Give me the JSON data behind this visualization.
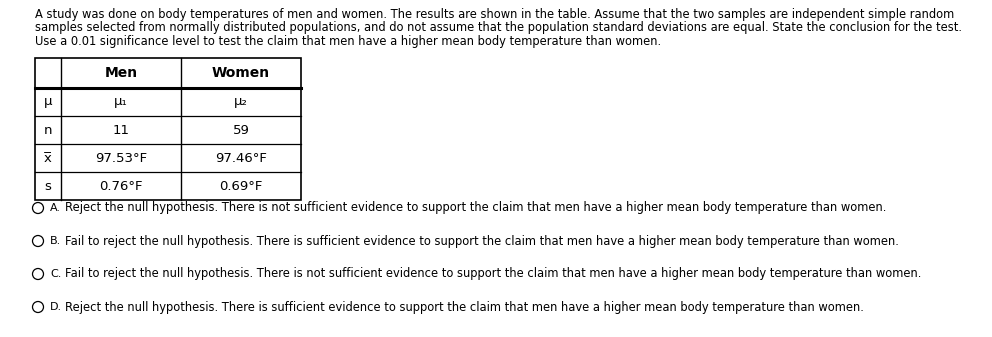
{
  "title_lines": [
    "A study was done on body temperatures of men and women. The results are shown in the table. Assume that the two samples are independent simple random",
    "samples selected from normally distributed populations, and do not assume that the population standard deviations are equal. State the conclusion for the test.",
    "Use a 0.01 significance level to test the claim that men have a higher mean body temperature than women."
  ],
  "table_rows": [
    [
      "μ",
      "μ₁",
      "μ₂"
    ],
    [
      "n",
      "11",
      "59"
    ],
    [
      "x̅",
      "97.53°F",
      "97.46°F"
    ],
    [
      "s",
      "0.76°F",
      "0.69°F"
    ]
  ],
  "options": [
    {
      "label": "A.",
      "text": "Reject the null hypothesis. There is not sufficient evidence to support the claim that men have a higher mean body temperature than women."
    },
    {
      "label": "B.",
      "text": "Fail to reject the null hypothesis. There is sufficient evidence to support the claim that men have a higher mean body temperature than women."
    },
    {
      "label": "C.",
      "text": "Fail to reject the null hypothesis. There is not sufficient evidence to support the claim that men have a higher mean body temperature than women."
    },
    {
      "label": "D.",
      "text": "Reject the null hypothesis. There is sufficient evidence to support the claim that men have a higher mean body temperature than women."
    }
  ],
  "bg_color": "#ffffff",
  "text_color": "#000000"
}
